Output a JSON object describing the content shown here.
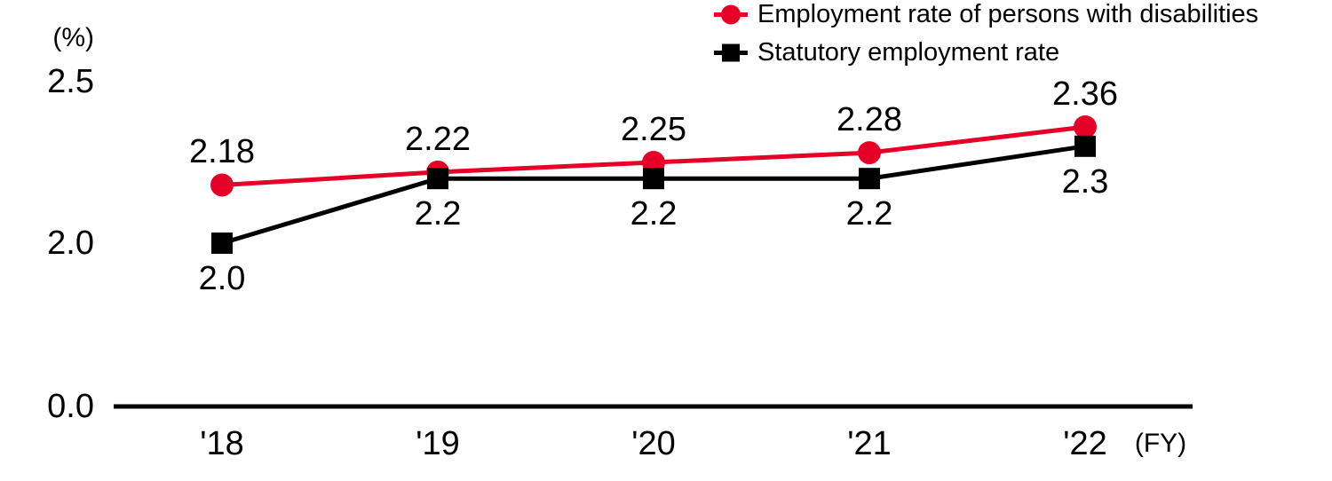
{
  "chart_data": {
    "type": "line",
    "title": "",
    "y_unit_label": "(%)",
    "x_unit_label": "(FY)",
    "categories": [
      "'18",
      "'19",
      "'20",
      "'21",
      "'22"
    ],
    "series": [
      {
        "name": "Employment rate of persons with disabilities",
        "color": "#e60028",
        "marker": "circle",
        "values": [
          2.18,
          2.22,
          2.25,
          2.28,
          2.36
        ],
        "point_labels": [
          "2.18",
          "2.22",
          "2.25",
          "2.28",
          "2.36"
        ],
        "label_position": "above"
      },
      {
        "name": "Statutory employment rate",
        "color": "#000000",
        "marker": "square",
        "values": [
          2.0,
          2.2,
          2.2,
          2.2,
          2.3
        ],
        "point_labels": [
          "2.0",
          "2.2",
          "2.2",
          "2.2",
          "2.3"
        ],
        "label_position": "below"
      }
    ],
    "y_ticks": [
      {
        "label": "2.5",
        "value": 2.5
      },
      {
        "label": "2.0",
        "value": 2.0
      },
      {
        "label": "0.0",
        "value": 0.0
      }
    ],
    "ylim": [
      0,
      2.5
    ],
    "axis_compressed_below": 2.0,
    "grid": false,
    "legend_position": "top-right",
    "background": "#ffffff"
  }
}
